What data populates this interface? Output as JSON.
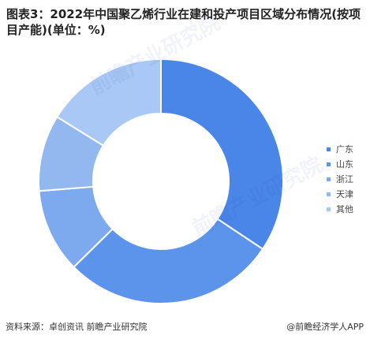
{
  "title": "图表3：2022年中国聚乙烯行业在建和投产项目区域分布情况(按项目产能)(单位：%)",
  "source": "资料来源：卓创资讯 前瞻产业研究院",
  "brand": "@前瞻经济学人APP",
  "watermark": "前瞻产业研究院",
  "chart_data": {
    "type": "pie",
    "donut": true,
    "unit": "%",
    "legend_position": "right",
    "categories": [
      "广东",
      "山东",
      "浙江",
      "天津",
      "其他"
    ],
    "values": [
      34,
      28,
      11,
      10,
      16
    ],
    "colors": [
      "#4a86e8",
      "#5b94ea",
      "#7da9ee",
      "#93b8f0",
      "#a9c8f5"
    ]
  }
}
